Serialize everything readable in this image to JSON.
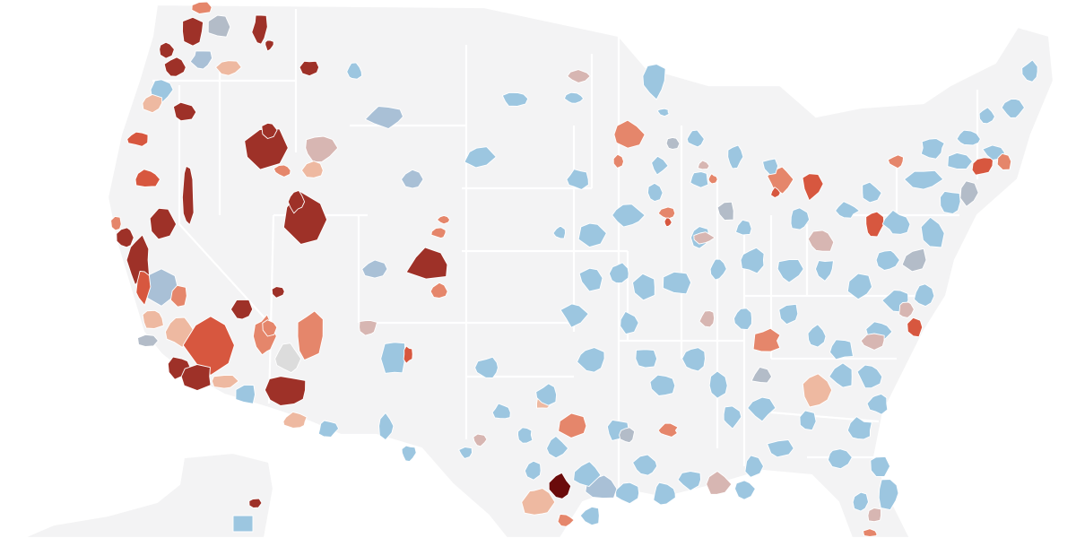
{
  "map": {
    "background_color": "#ffffff",
    "land_color": "#f3f3f4",
    "border_color": "#ffffff",
    "color_scale": {
      "dark_red": "#6b0b0b",
      "red_strong": "#9e3128",
      "red": "#d7573f",
      "red_medium": "#e5866b",
      "red_light": "#eeb9a1",
      "neutral_pink": "#d7b6b2",
      "neutral_gray": "#b3bcc8",
      "gray_light": "#dcdcdc",
      "blue_gray": "#a9c0d6",
      "blue": "#9cc6e0"
    }
  }
}
